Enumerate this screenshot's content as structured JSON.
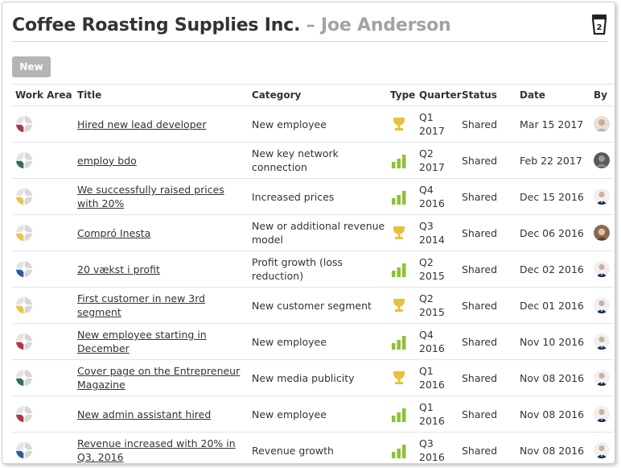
{
  "header": {
    "company": "Coffee Roasting Supplies Inc.",
    "separator": " – ",
    "person": "Joe Anderson",
    "icon": "coffee-cup-icon"
  },
  "toolbar": {
    "new_label": "New"
  },
  "table": {
    "columns": [
      "Work Area",
      "Title",
      "Category",
      "Type",
      "Quarter",
      "Status",
      "Date",
      "By"
    ],
    "rows": [
      {
        "work_area_color": "#a83a45",
        "title": "Hired new lead developer",
        "category": "New employee",
        "type": "trophy",
        "q": "Q1",
        "year": "2017",
        "status": "Shared",
        "date": "Mar 15 2017",
        "avatar": "light"
      },
      {
        "work_area_color": "#2f6f55",
        "title": "employ bdo",
        "category": "New key network connection",
        "type": "bars",
        "q": "Q2",
        "year": "2017",
        "status": "Shared",
        "date": "Feb 22 2017",
        "avatar": "gray"
      },
      {
        "work_area_color": "#e9c34a",
        "title": "We successfully raised prices with 20%",
        "category": "Increased prices",
        "type": "bars",
        "q": "Q4",
        "year": "2016",
        "status": "Shared",
        "date": "Dec 15 2016",
        "avatar": "suit"
      },
      {
        "work_area_color": "#e9c34a",
        "title": "Compró Inesta",
        "category": "New or additional revenue model",
        "type": "trophy",
        "q": "Q3",
        "year": "2014",
        "status": "Shared",
        "date": "Dec 06 2016",
        "avatar": "brown"
      },
      {
        "work_area_color": "#2d5d97",
        "title": "20 vækst i profit",
        "category": "Profit growth (loss reduction)",
        "type": "bars",
        "q": "Q2",
        "year": "2015",
        "status": "Shared",
        "date": "Dec 02 2016",
        "avatar": "suit"
      },
      {
        "work_area_color": "#e9c34a",
        "title": "First customer in new 3rd segment",
        "category": "New customer segment",
        "type": "trophy",
        "q": "Q2",
        "year": "2015",
        "status": "Shared",
        "date": "Dec 01 2016",
        "avatar": "suit"
      },
      {
        "work_area_color": "#a83a45",
        "title": "New employee starting in December",
        "category": "New employee",
        "type": "bars",
        "q": "Q4",
        "year": "2016",
        "status": "Shared",
        "date": "Nov 10 2016",
        "avatar": "suit"
      },
      {
        "work_area_color": "#2f6f55",
        "title": "Cover page on the Entrepreneur Magazine",
        "category": "New media publicity",
        "type": "trophy",
        "q": "Q1",
        "year": "2016",
        "status": "Shared",
        "date": "Nov 08 2016",
        "avatar": "suit"
      },
      {
        "work_area_color": "#a83a45",
        "title": "New admin assistant hired",
        "category": "New employee",
        "type": "bars",
        "q": "Q1",
        "year": "2016",
        "status": "Shared",
        "date": "Nov 08 2016",
        "avatar": "suit"
      },
      {
        "work_area_color": "#2d5d97",
        "title": "Revenue increased with 20% in Q3, 2016",
        "category": "Revenue growth",
        "type": "bars",
        "q": "Q3",
        "year": "2016",
        "status": "Shared",
        "date": "Nov 08 2016",
        "avatar": "suit"
      }
    ]
  },
  "colors": {
    "trophy": "#e6c13d",
    "bars": "#8fbf3a",
    "button": "#b5b5b5"
  }
}
